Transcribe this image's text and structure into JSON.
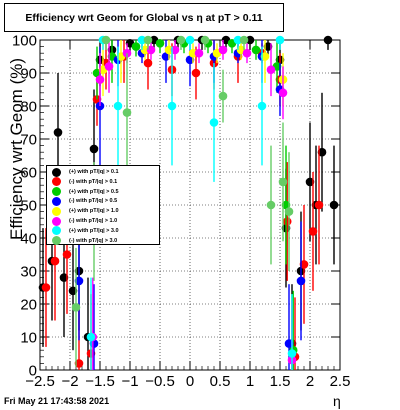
{
  "title": "Efficiency wrt Geom for Global vs   η at pT > 0.11",
  "datestamp": "Fri May 21 17:43:58 2021",
  "chart_data": {
    "type": "scatter",
    "xlabel": "η",
    "ylabel": "Efficiency wrt Geom (%)",
    "xlim": [
      -2.5,
      2.5
    ],
    "ylim": [
      0,
      100
    ],
    "x_ticks": [
      "−2.5",
      "−2",
      "−1.5",
      "−1",
      "−0.5",
      "0",
      "0.5",
      "1",
      "1.5",
      "2",
      "2.5"
    ],
    "y_ticks": [
      "0",
      "10",
      "20",
      "30",
      "40",
      "50",
      "60",
      "70",
      "80",
      "90",
      "100"
    ],
    "grid": true,
    "legend_position": "middle-left",
    "series": [
      {
        "name": "(+) with pT/|q| > 0.1",
        "color": "#000000",
        "points": [
          [
            -2.45,
            25
          ],
          [
            -2.3,
            33
          ],
          [
            -2.2,
            72
          ],
          [
            -2.1,
            28
          ],
          [
            -1.95,
            24
          ],
          [
            -1.85,
            30
          ],
          [
            -1.7,
            10
          ],
          [
            -1.6,
            67
          ],
          [
            -1.5,
            94
          ],
          [
            -1.3,
            97
          ],
          [
            -1.0,
            99
          ],
          [
            -0.6,
            100
          ],
          [
            -0.2,
            100
          ],
          [
            0.2,
            100
          ],
          [
            0.6,
            100
          ],
          [
            1.0,
            100
          ],
          [
            1.3,
            98
          ],
          [
            1.5,
            94
          ],
          [
            1.6,
            43
          ],
          [
            1.7,
            8
          ],
          [
            1.85,
            30
          ],
          [
            2.0,
            57
          ],
          [
            2.1,
            50
          ],
          [
            2.2,
            66
          ],
          [
            2.3,
            100
          ],
          [
            2.4,
            50
          ]
        ]
      },
      {
        "name": "(-) with pT/|q| > 0.1",
        "color": "#ff0000",
        "points": [
          [
            -2.4,
            25
          ],
          [
            -2.25,
            33
          ],
          [
            -2.05,
            35
          ],
          [
            -1.85,
            2
          ],
          [
            -1.65,
            5
          ],
          [
            -1.55,
            82
          ],
          [
            -1.4,
            93
          ],
          [
            -1.1,
            95
          ],
          [
            -0.7,
            93
          ],
          [
            -0.3,
            91
          ],
          [
            0.1,
            90
          ],
          [
            0.4,
            93
          ],
          [
            0.8,
            95
          ],
          [
            1.2,
            96
          ],
          [
            1.5,
            88
          ],
          [
            1.62,
            45
          ],
          [
            1.75,
            4
          ],
          [
            1.9,
            32
          ],
          [
            2.05,
            42
          ],
          [
            2.15,
            50
          ]
        ]
      },
      {
        "name": "(+) with pT/|q| > 0.5",
        "color": "#00cc00",
        "points": [
          [
            -1.55,
            90
          ],
          [
            -1.3,
            95
          ],
          [
            -0.9,
            98
          ],
          [
            -0.5,
            99
          ],
          [
            -0.1,
            99
          ],
          [
            0.3,
            99
          ],
          [
            0.7,
            99
          ],
          [
            1.1,
            97
          ],
          [
            1.45,
            92
          ],
          [
            1.6,
            50
          ],
          [
            1.72,
            6
          ]
        ]
      },
      {
        "name": "(-) with pT/|q| > 0.5",
        "color": "#0000ff",
        "points": [
          [
            -1.85,
            27
          ],
          [
            -1.6,
            8
          ],
          [
            -1.5,
            80
          ],
          [
            -1.2,
            94
          ],
          [
            -0.8,
            96
          ],
          [
            -0.4,
            95
          ],
          [
            0.0,
            94
          ],
          [
            0.4,
            95
          ],
          [
            0.8,
            96
          ],
          [
            1.2,
            95
          ],
          [
            1.5,
            85
          ],
          [
            1.65,
            8
          ],
          [
            1.85,
            27
          ]
        ]
      },
      {
        "name": "(+) with pT/|q| > 1.0",
        "color": "#ffff00",
        "points": [
          [
            -1.45,
            91
          ],
          [
            -1.15,
            95
          ],
          [
            -0.75,
            97
          ],
          [
            -0.35,
            97
          ],
          [
            0.05,
            96
          ],
          [
            0.45,
            96
          ],
          [
            0.85,
            97
          ],
          [
            1.25,
            95
          ],
          [
            1.55,
            88
          ]
        ]
      },
      {
        "name": "(-) with pT/|q| > 1.0",
        "color": "#ff00ff",
        "points": [
          [
            -1.62,
            10
          ],
          [
            -1.5,
            88
          ],
          [
            -1.35,
            92
          ],
          [
            -1.05,
            96
          ],
          [
            -0.65,
            97
          ],
          [
            -0.25,
            97
          ],
          [
            0.15,
            96
          ],
          [
            0.55,
            97
          ],
          [
            0.95,
            96
          ],
          [
            1.35,
            91
          ],
          [
            1.55,
            84
          ],
          [
            1.7,
            3
          ]
        ]
      },
      {
        "name": "(+) with pT/|q| > 3.0",
        "color": "#00ffff",
        "points": [
          [
            -1.65,
            10
          ],
          [
            -1.45,
            100
          ],
          [
            -1.2,
            80
          ],
          [
            -0.8,
            100
          ],
          [
            -0.3,
            80
          ],
          [
            0.0,
            100
          ],
          [
            0.4,
            75
          ],
          [
            0.8,
            100
          ],
          [
            1.2,
            80
          ],
          [
            1.5,
            100
          ],
          [
            1.7,
            5
          ]
        ]
      },
      {
        "name": "(-) with pT/|q| > 3.0",
        "color": "#66cc66",
        "points": [
          [
            -1.9,
            19
          ],
          [
            -1.6,
            45
          ],
          [
            -1.4,
            100
          ],
          [
            -1.05,
            78
          ],
          [
            -0.7,
            100
          ],
          [
            -0.15,
            100
          ],
          [
            0.25,
            100
          ],
          [
            0.55,
            83
          ],
          [
            0.9,
            100
          ],
          [
            1.35,
            50
          ],
          [
            1.55,
            57
          ],
          [
            1.65,
            48
          ]
        ]
      }
    ]
  }
}
